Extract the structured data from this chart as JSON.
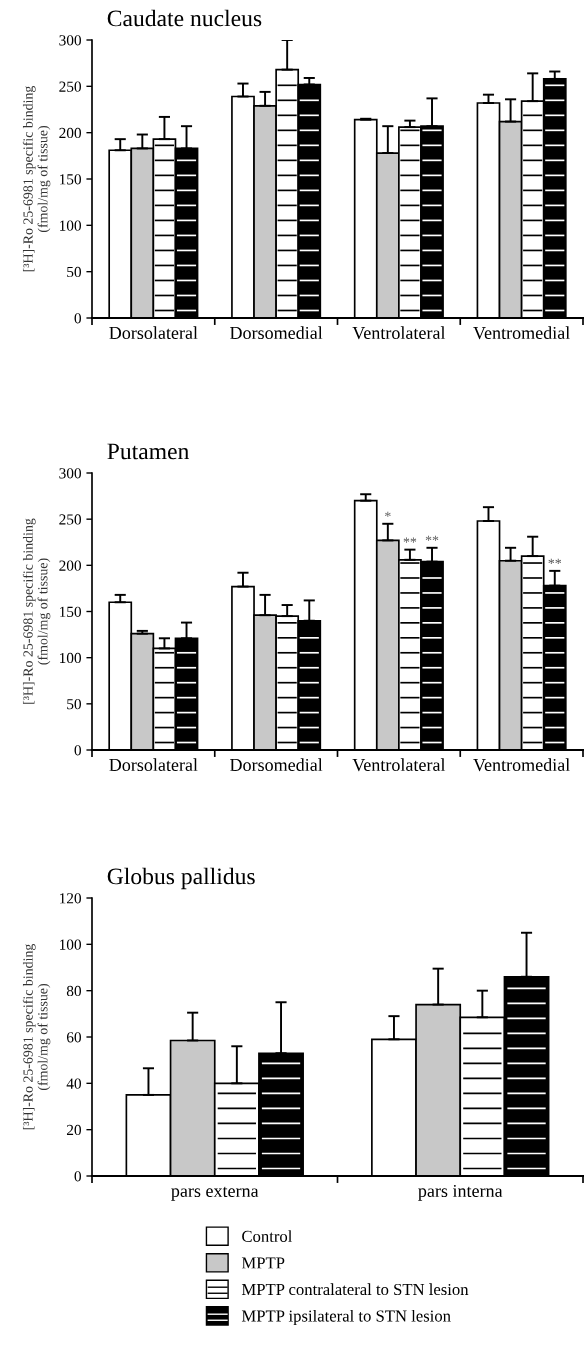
{
  "chart_data": [
    {
      "type": "bar",
      "title": "Caudate nucleus",
      "ylabel": "[³H]-Ro 25-6981 specific binding\n(fmol/mg of tissue)",
      "categories": [
        "Dorsolateral",
        "Dorsomedial",
        "Ventrolateral",
        "Ventromedial"
      ],
      "ylim": [
        0,
        300
      ],
      "yticks": [
        0,
        50,
        100,
        150,
        200,
        250,
        300
      ],
      "grid": false,
      "legend": false,
      "series": [
        {
          "color": "#ffffff",
          "values": [
            181,
            239,
            214,
            232
          ],
          "errors": [
            [
              181,
              193
            ],
            [
              239,
              253
            ],
            [
              214,
              215
            ],
            [
              232,
              241
            ]
          ]
        },
        {
          "color": "#c8c8c8",
          "values": [
            183,
            229,
            178,
            212
          ],
          "errors": [
            [
              183,
              198
            ],
            [
              229,
              244
            ],
            [
              178,
              207
            ],
            [
              212,
              236
            ]
          ]
        },
        {
          "color": "#ffffff",
          "values": [
            193,
            268,
            206,
            234
          ],
          "errors": [
            [
              193,
              217
            ],
            [
              268,
              300
            ],
            [
              206,
              213
            ],
            [
              234,
              264
            ]
          ]
        },
        {
          "color": "#000000",
          "values": [
            183,
            252,
            207,
            258
          ],
          "errors": [
            [
              183,
              207
            ],
            [
              252,
              259
            ],
            [
              207,
              237
            ],
            [
              258,
              266
            ]
          ]
        }
      ]
    },
    {
      "type": "bar",
      "title": "Putamen",
      "ylabel": "[³H]-Ro 25-6981 specific binding\n(fmol/mg of tissue)",
      "categories": [
        "Dorsolateral",
        "Dorsomedial",
        "Ventrolateral",
        "Ventromedial"
      ],
      "ylim": [
        0,
        300
      ],
      "yticks": [
        0,
        50,
        100,
        150,
        200,
        250,
        300
      ],
      "grid": false,
      "legend": false,
      "series": [
        {
          "color": "#ffffff",
          "values": [
            160,
            177,
            270,
            248
          ],
          "errors": [
            [
              160,
              168
            ],
            [
              177,
              192
            ],
            [
              270,
              277
            ],
            [
              248,
              263
            ]
          ]
        },
        {
          "color": "#c8c8c8",
          "values": [
            126,
            146,
            227,
            205
          ],
          "errors": [
            [
              126,
              129
            ],
            [
              146,
              168
            ],
            [
              227,
              245
            ],
            [
              205,
              219
            ]
          ]
        },
        {
          "color": "#ffffff",
          "values": [
            110,
            145,
            206,
            210
          ],
          "errors": [
            [
              110,
              121
            ],
            [
              145,
              157
            ],
            [
              206,
              217
            ],
            [
              210,
              231
            ]
          ]
        },
        {
          "color": "#000000",
          "values": [
            121,
            140,
            204,
            178
          ],
          "errors": [
            [
              121,
              138
            ],
            [
              140,
              162
            ],
            [
              204,
              219
            ],
            [
              178,
              194
            ]
          ]
        }
      ],
      "annotations": [
        {
          "text": "*",
          "x": "Ventrolateral",
          "y": 227
        },
        {
          "text": "**",
          "x": "Ventrolateral",
          "y": 206
        },
        {
          "text": "**",
          "x": "Ventrolateral",
          "y": 204
        },
        {
          "text": "**",
          "x": "Ventromedial",
          "y": 178
        }
      ]
    },
    {
      "type": "bar",
      "title": "Globus pallidus",
      "ylabel": "[³H]-Ro 25-6981 specific binding\n(fmol/mg of tissue)",
      "categories": [
        "pars externa",
        "pars interna"
      ],
      "ylim": [
        0,
        120
      ],
      "yticks": [
        0,
        20,
        40,
        60,
        80,
        100,
        120
      ],
      "grid": false,
      "legend": "bottom",
      "series": [
        {
          "name": "Control",
          "color": "#ffffff",
          "values": [
            35,
            59
          ],
          "errors": [
            [
              35,
              46.5
            ],
            [
              59,
              69
            ]
          ]
        },
        {
          "name": "MPTP",
          "color": "#c8c8c8",
          "values": [
            58.5,
            74
          ],
          "errors": [
            [
              58.5,
              70.5
            ],
            [
              74,
              89.5
            ]
          ]
        },
        {
          "name": "MPTP contralateral to STN lesion",
          "color": "#ffffff",
          "values": [
            40,
            68.5
          ],
          "errors": [
            [
              40,
              56
            ],
            [
              68.5,
              80
            ]
          ]
        },
        {
          "name": "MPTP ipsilateral to STN lesion",
          "color": "#000000",
          "values": [
            53,
            86
          ],
          "errors": [
            [
              53,
              75
            ],
            [
              86,
              105
            ]
          ]
        }
      ]
    }
  ]
}
